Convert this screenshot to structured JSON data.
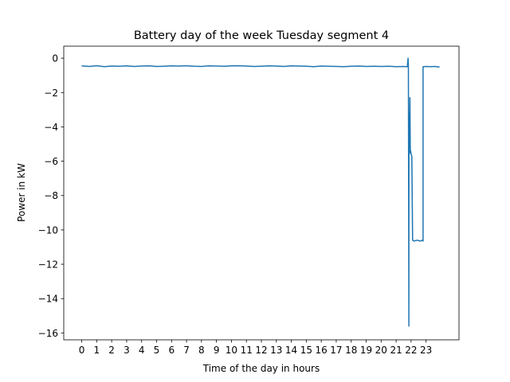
{
  "chart_data": {
    "type": "line",
    "title": "Battery day of the week Tuesday segment 4",
    "xlabel": "Time of the day in hours",
    "ylabel": "Power in kW",
    "xlim": [
      -1.2,
      25.2
    ],
    "ylim": [
      -16.4,
      0.7
    ],
    "xticks": [
      0,
      1,
      2,
      3,
      4,
      5,
      6,
      7,
      8,
      9,
      10,
      11,
      12,
      13,
      14,
      15,
      16,
      17,
      18,
      19,
      20,
      21,
      22,
      23
    ],
    "xtick_labels": [
      "0",
      "1",
      "2",
      "3",
      "4",
      "5",
      "6",
      "7",
      "8",
      "9",
      "10",
      "11",
      "12",
      "13",
      "14",
      "15",
      "16",
      "17",
      "18",
      "19",
      "20",
      "21",
      "22",
      "23"
    ],
    "yticks": [
      0,
      -2,
      -4,
      -6,
      -8,
      -10,
      -12,
      -14,
      -16
    ],
    "ytick_labels": [
      "0",
      "−2",
      "−4",
      "−6",
      "−8",
      "−10",
      "−12",
      "−14",
      "−16"
    ],
    "grid": false,
    "line_color": "#1f77b4",
    "series": [
      {
        "x": [
          0.0,
          0.5,
          1.0,
          1.5,
          2.0,
          2.5,
          3.0,
          3.5,
          4.0,
          4.5,
          5.0,
          5.5,
          6.0,
          6.5,
          7.0,
          7.5,
          8.0,
          8.5,
          9.0,
          9.5,
          10.0,
          10.5,
          11.0,
          11.5,
          12.0,
          12.5,
          13.0,
          13.5,
          14.0,
          14.5,
          15.0,
          15.5,
          16.0,
          16.5,
          17.0,
          17.5,
          18.0,
          18.5,
          19.0,
          19.5,
          20.0,
          20.5,
          21.0,
          21.5,
          21.75,
          21.8,
          21.82,
          21.85,
          21.86,
          21.88,
          21.9,
          21.92,
          21.95,
          21.97,
          22.0,
          22.05,
          22.1,
          22.2,
          22.4,
          22.6,
          22.75,
          22.8,
          22.8,
          23.0,
          23.3,
          23.6,
          23.9
        ],
        "y": [
          -0.45,
          -0.48,
          -0.44,
          -0.49,
          -0.46,
          -0.47,
          -0.45,
          -0.48,
          -0.46,
          -0.45,
          -0.48,
          -0.47,
          -0.45,
          -0.46,
          -0.44,
          -0.47,
          -0.48,
          -0.45,
          -0.46,
          -0.47,
          -0.45,
          -0.44,
          -0.46,
          -0.48,
          -0.47,
          -0.45,
          -0.46,
          -0.48,
          -0.45,
          -0.46,
          -0.47,
          -0.49,
          -0.46,
          -0.47,
          -0.48,
          -0.49,
          -0.47,
          -0.46,
          -0.48,
          -0.47,
          -0.48,
          -0.47,
          -0.49,
          -0.48,
          -0.5,
          0.0,
          -0.5,
          -15.6,
          -3.2,
          -5.6,
          -4.0,
          -2.3,
          -5.5,
          -5.4,
          -5.6,
          -5.7,
          -10.6,
          -10.65,
          -10.6,
          -10.65,
          -10.6,
          -10.65,
          -0.5,
          -0.48,
          -0.49,
          -0.48,
          -0.52
        ]
      }
    ]
  }
}
